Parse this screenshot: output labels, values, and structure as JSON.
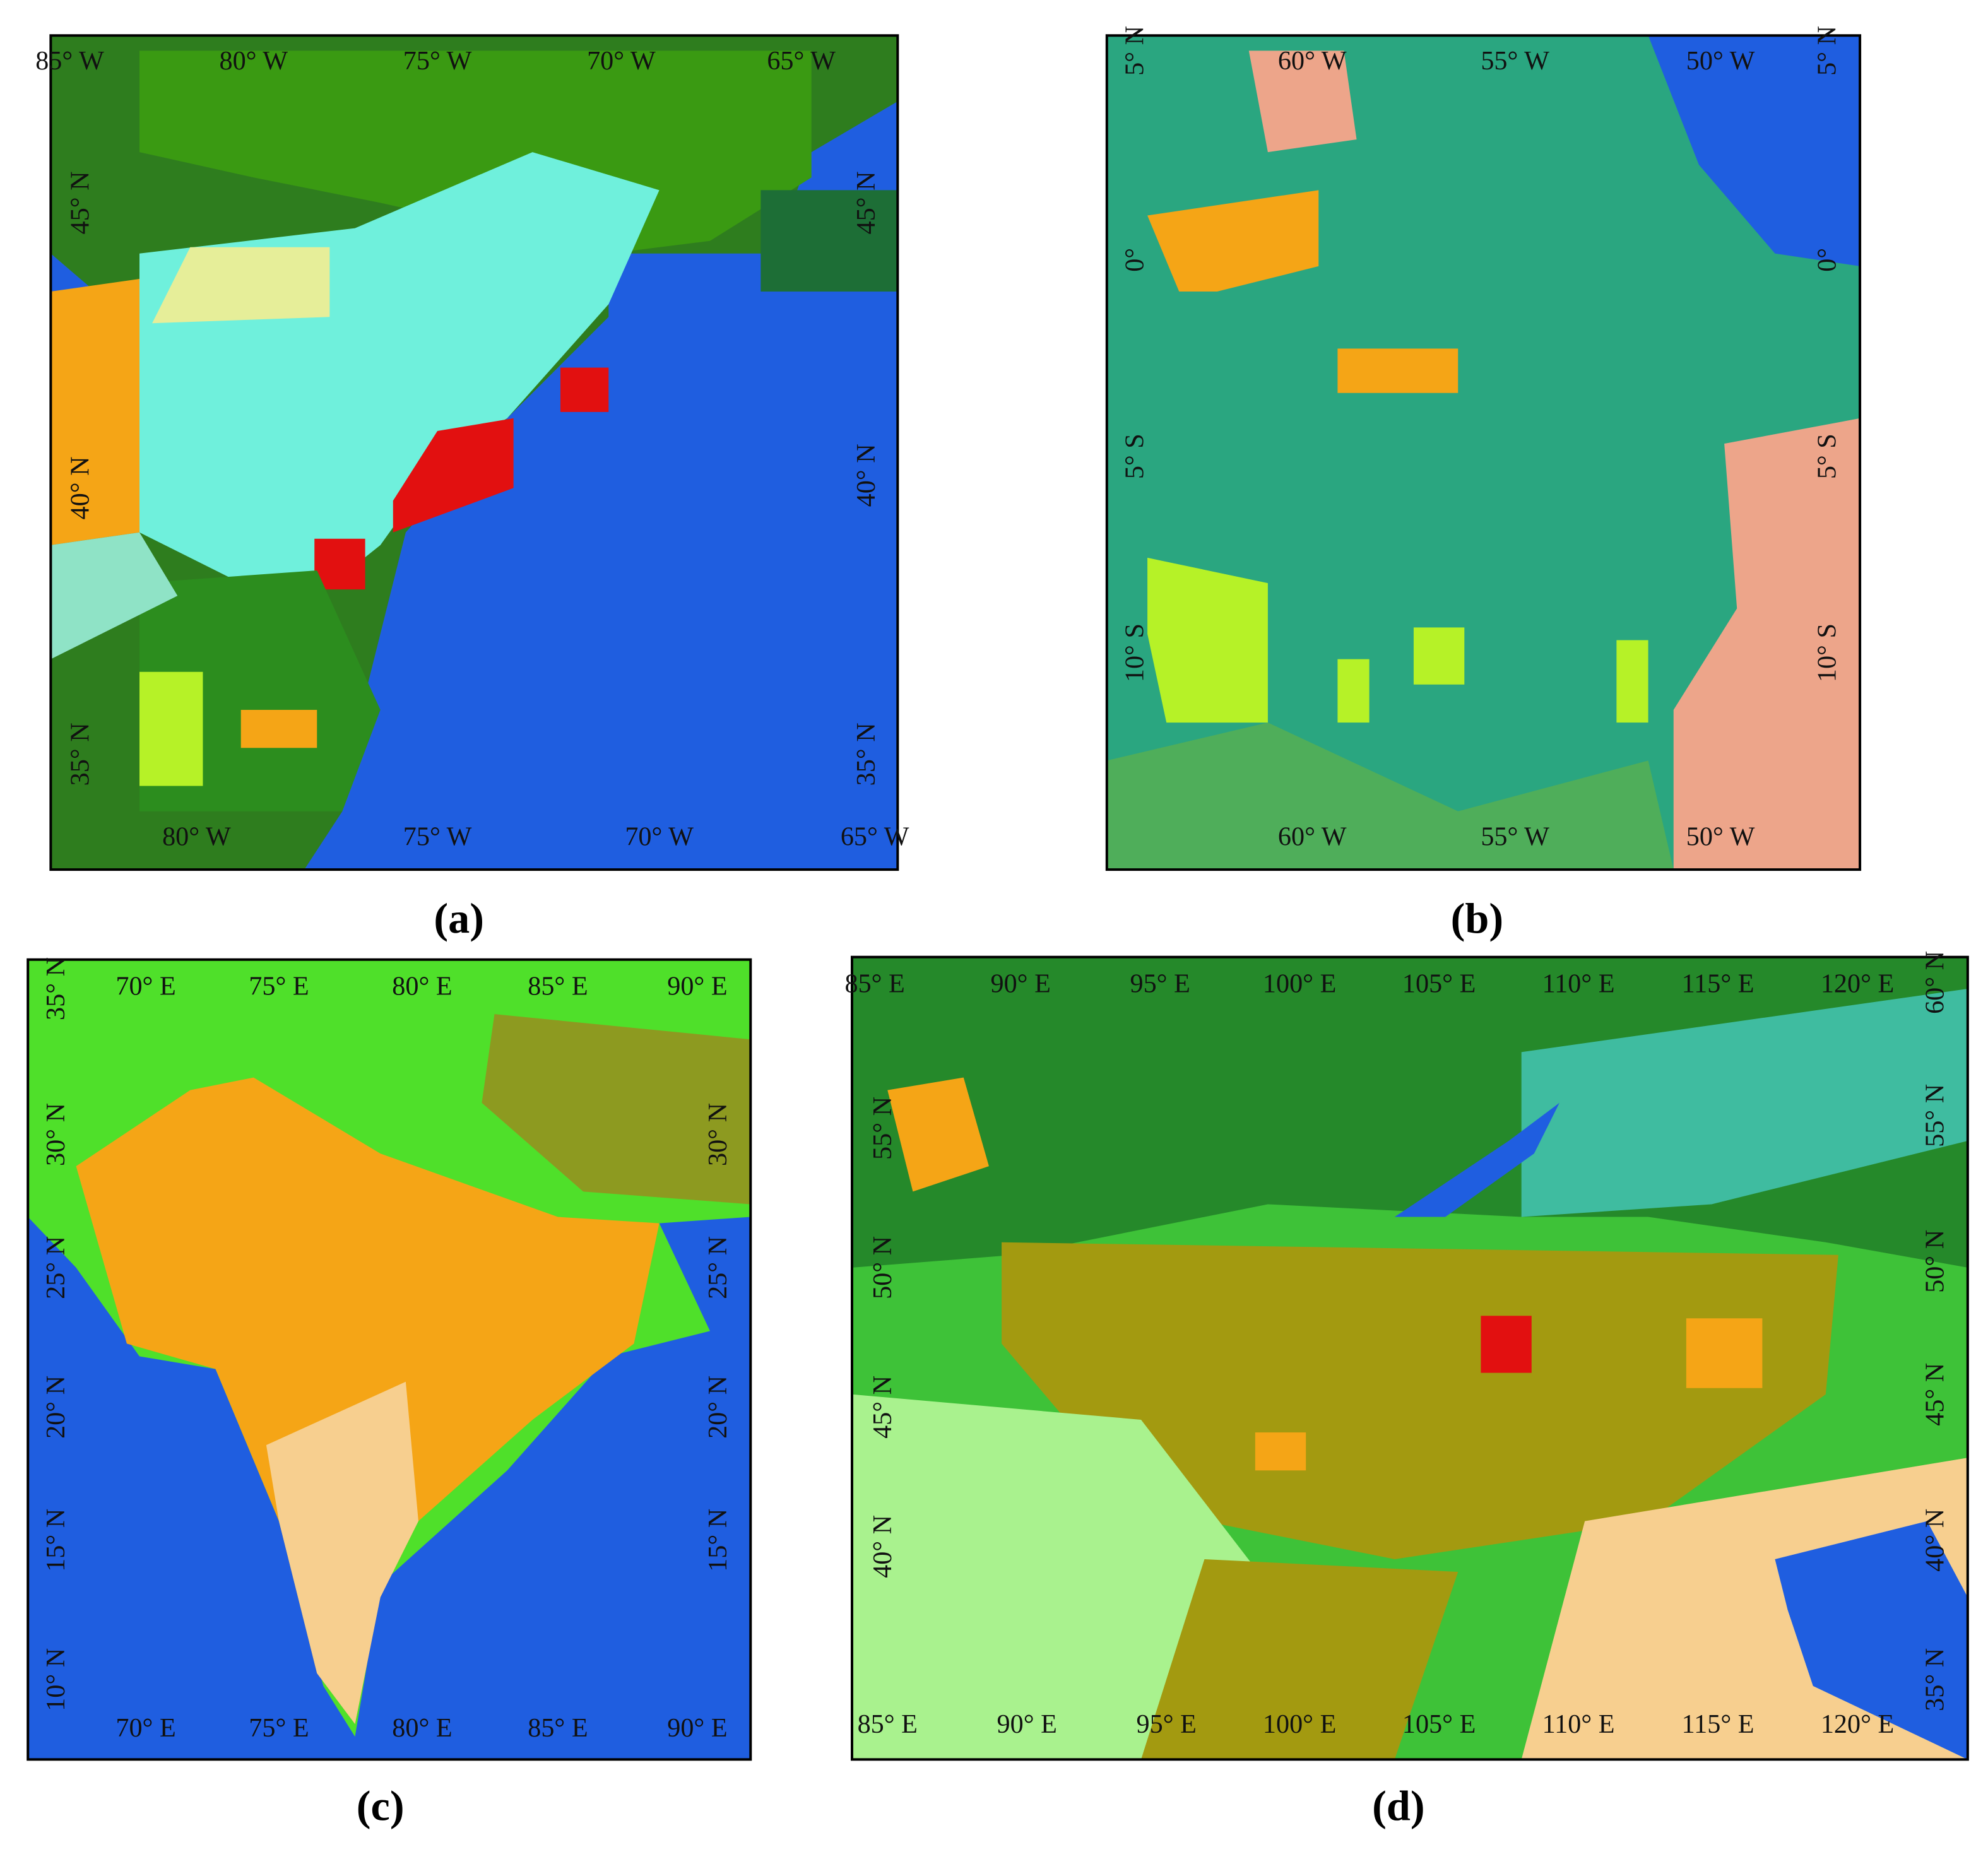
{
  "panels": [
    {
      "caption": "(a)",
      "top": [
        "85° W",
        "80° W",
        "75° W",
        "70° W",
        "65° W"
      ],
      "bottom": [
        "80° W",
        "75° W",
        "70° W",
        "65° W"
      ],
      "left": [
        "45° N",
        "40° N",
        "35° N"
      ],
      "right": [
        "45° N",
        "40° N",
        "35° N"
      ]
    },
    {
      "caption": "(b)",
      "top": [
        "60° W",
        "55° W",
        "50° W"
      ],
      "bottom": [
        "60° W",
        "55° W",
        "50° W"
      ],
      "left": [
        "5° N",
        "0°",
        "5° S",
        "10° S"
      ],
      "right": [
        "5° N",
        "0°",
        "5° S",
        "10° S"
      ]
    },
    {
      "caption": "(c)",
      "top": [
        "70° E",
        "75° E",
        "80° E",
        "85° E",
        "90° E"
      ],
      "bottom": [
        "70° E",
        "75° E",
        "80° E",
        "85° E",
        "90° E"
      ],
      "left": [
        "35° N",
        "30° N",
        "25° N",
        "20° N",
        "15° N",
        "10° N"
      ],
      "right": [
        "30° N",
        "25° N",
        "20° N",
        "15° N"
      ]
    },
    {
      "caption": "(d)",
      "top": [
        "85° E",
        "90° E",
        "95° E",
        "100° E",
        "105° E",
        "110° E",
        "115° E",
        "120° E"
      ],
      "bottom": [
        "85° E",
        "90° E",
        "95° E",
        "100° E",
        "105° E",
        "110° E",
        "115° E",
        "120° E"
      ],
      "left": [
        "55° N",
        "50° N",
        "45° N",
        "40° N"
      ],
      "right": [
        "60° N",
        "55° N",
        "50° N",
        "45° N",
        "40° N",
        "35° N"
      ]
    }
  ]
}
